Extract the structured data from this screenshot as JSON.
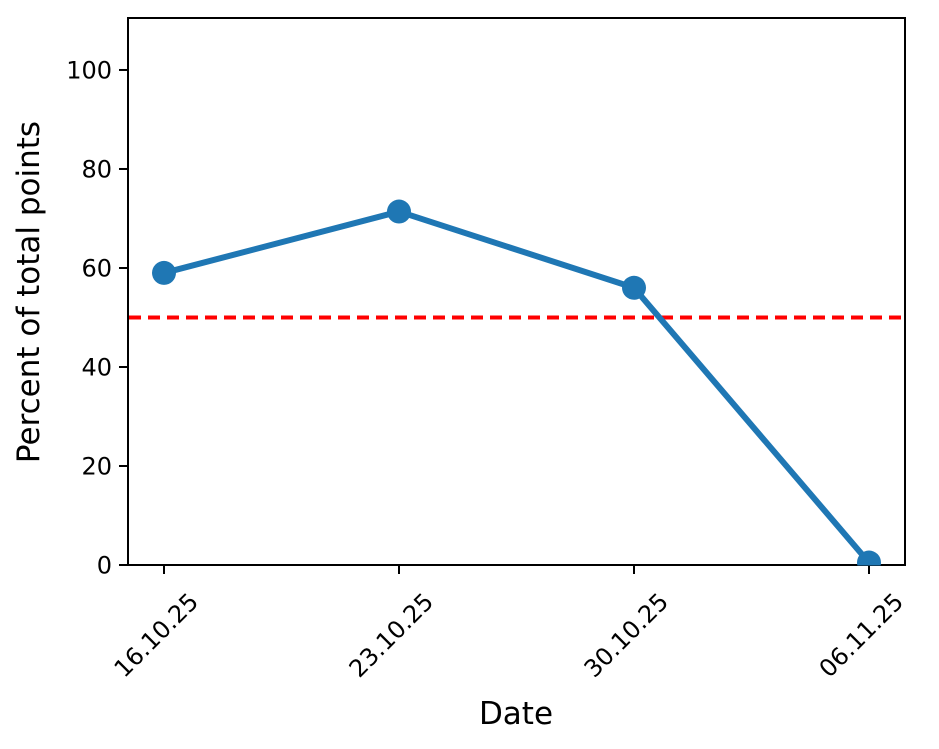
{
  "figure": {
    "background": "#ffffff",
    "plot_border_color": "#000000"
  },
  "chart_data": {
    "type": "line",
    "title": "",
    "xlabel": "Date",
    "ylabel": "Percent of total points",
    "categories": [
      "16.10.25",
      "23.10.25",
      "30.10.25",
      "06.11.25"
    ],
    "series": [
      {
        "name": "percent of total points",
        "values": [
          59,
          71.4,
          56,
          0.5
        ],
        "color": "#1f77b4",
        "marker": "circle"
      }
    ],
    "reference_line": {
      "y": 50,
      "color": "#ff0000",
      "style": "dashed"
    },
    "yticks": [
      0,
      20,
      40,
      60,
      80,
      100
    ],
    "ylim": [
      0,
      110.5
    ],
    "grid": false,
    "legend": false,
    "x_tick_label_rotation": 45
  }
}
